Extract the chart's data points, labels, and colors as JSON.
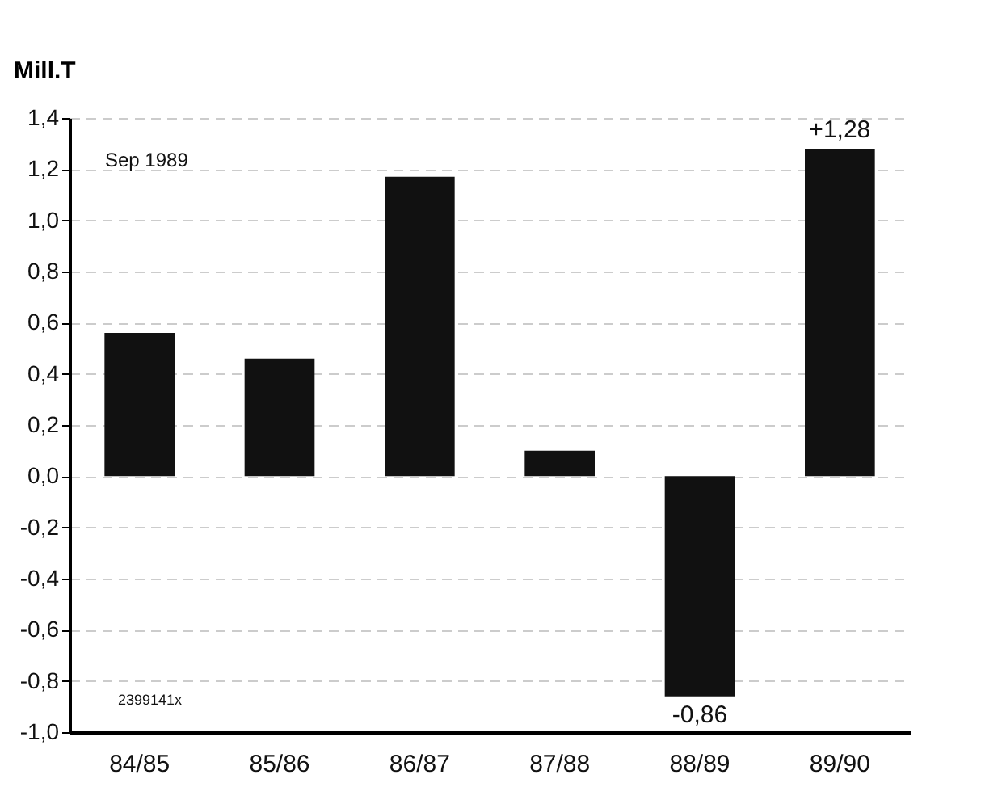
{
  "chart_data": {
    "type": "bar",
    "ylabel": "Mill.T",
    "categories": [
      "84/85",
      "85/86",
      "86/87",
      "87/88",
      "88/89",
      "89/90"
    ],
    "values": [
      0.56,
      0.46,
      1.17,
      0.1,
      -0.86,
      1.28
    ],
    "color": "#111111",
    "value_labels": [
      null,
      null,
      null,
      null,
      "-0,86",
      "+1,28"
    ],
    "ylim": [
      -1.0,
      1.4
    ],
    "yticks": [
      {
        "value": -1.0,
        "label": "-1,0"
      },
      {
        "value": -0.8,
        "label": "-0,8"
      },
      {
        "value": -0.6,
        "label": "-0,6"
      },
      {
        "value": -0.4,
        "label": "-0,4"
      },
      {
        "value": -0.2,
        "label": "-0,2"
      },
      {
        "value": 0,
        "label": "0,0"
      },
      {
        "value": 0.2,
        "label": "0,2"
      },
      {
        "value": 0.4,
        "label": "0,4"
      },
      {
        "value": 0.6,
        "label": "0,6"
      },
      {
        "value": 0.8,
        "label": "0,8"
      },
      {
        "value": 1.0,
        "label": "1,0"
      },
      {
        "value": 1.2,
        "label": "1,2"
      },
      {
        "value": 1.4,
        "label": "1,4"
      }
    ],
    "grid": "y",
    "annotations": [
      "Sep 1989",
      "2399141x"
    ]
  }
}
